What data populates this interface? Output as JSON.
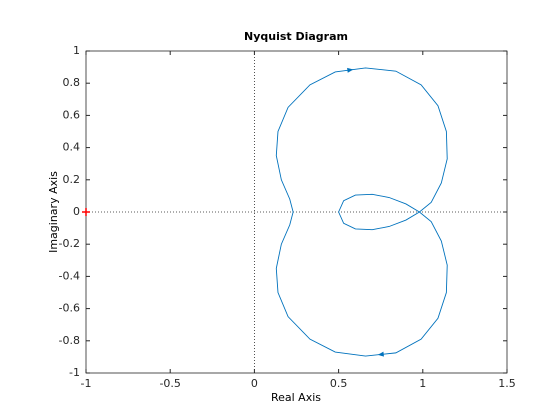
{
  "chart_data": {
    "type": "line",
    "title": "Nyquist Diagram",
    "x_label": "Real Axis",
    "y_label": "Imaginary Axis",
    "xlim": [
      -1,
      1.5
    ],
    "xticks": [
      -1,
      -0.5,
      0,
      0.5,
      1,
      1.5
    ],
    "ylim": [
      -1,
      1
    ],
    "yticks": [
      -1,
      -0.8,
      -0.6,
      -0.4,
      -0.2,
      0,
      0.2,
      0.4,
      0.6,
      0.8,
      1
    ],
    "critical_point": [
      -1,
      0
    ],
    "critical_color": "#ff0000",
    "series": [
      {
        "color": "#0072bd",
        "x": [
          0.5,
          0.53,
          0.6,
          0.7,
          0.8,
          0.9,
          0.98,
          1.05,
          1.11,
          1.145,
          1.14,
          1.09,
          0.99,
          0.84,
          0.66,
          0.48,
          0.33,
          0.2,
          0.14,
          0.13,
          0.16,
          0.21,
          0.23,
          0.21,
          0.16,
          0.13,
          0.14,
          0.2,
          0.33,
          0.48,
          0.66,
          0.84,
          0.99,
          1.09,
          1.14,
          1.145,
          1.11,
          1.05,
          0.98,
          0.9,
          0.8,
          0.7,
          0.6,
          0.53,
          0.5
        ],
        "values": [
          0,
          0.07,
          0.105,
          0.11,
          0.09,
          0.05,
          0,
          -0.06,
          -0.18,
          -0.33,
          -0.5,
          -0.66,
          -0.79,
          -0.875,
          -0.895,
          -0.87,
          -0.79,
          -0.65,
          -0.5,
          -0.35,
          -0.2,
          -0.08,
          0,
          0.08,
          0.2,
          0.35,
          0.5,
          0.65,
          0.79,
          0.87,
          0.895,
          0.875,
          0.79,
          0.66,
          0.5,
          0.33,
          0.18,
          0.06,
          0,
          -0.05,
          -0.09,
          -0.11,
          -0.105,
          -0.07,
          0
        ]
      }
    ]
  }
}
